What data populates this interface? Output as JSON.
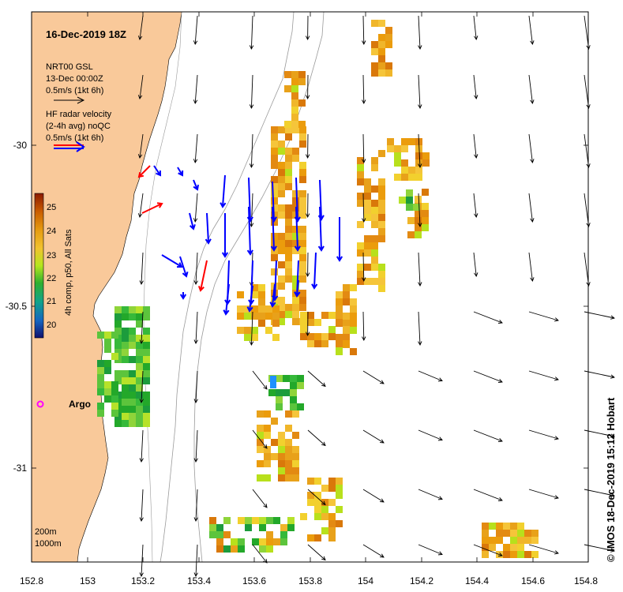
{
  "title": "16-Dec-2019 18Z",
  "legend": {
    "model_line1": "NRT00 GSL",
    "model_line2": "13-Dec 00:00Z",
    "model_scale": "0.5m/s (1kt 6h)",
    "radar_line1": "HF radar velocity",
    "radar_line2": "(2-4h avg) noQC",
    "radar_scale": "0.5m/s (1kt 6h)",
    "depth_200": "200m",
    "depth_1000": "1000m"
  },
  "colorbar": {
    "label": "4h comp, p50, All Sats",
    "ticks": [
      "25",
      "24",
      "23",
      "22",
      "21",
      "20"
    ]
  },
  "argo_label": "Argo",
  "credit": "© IMOS 18-Dec-2019 15:12 Hobart",
  "x_ticks": [
    "152.8",
    "153",
    "153.2",
    "153.4",
    "153.6",
    "153.8",
    "154",
    "154.2",
    "154.4",
    "154.6",
    "154.8"
  ],
  "y_ticks": [
    "-30",
    "-30.5",
    "-31"
  ],
  "colors": {
    "land": "#f9c99a",
    "radar_arrow": "#0000ff",
    "radar_arrow_alt": "#ff0000",
    "model_arrow": "#000000",
    "argo": "#ff00ff"
  }
}
